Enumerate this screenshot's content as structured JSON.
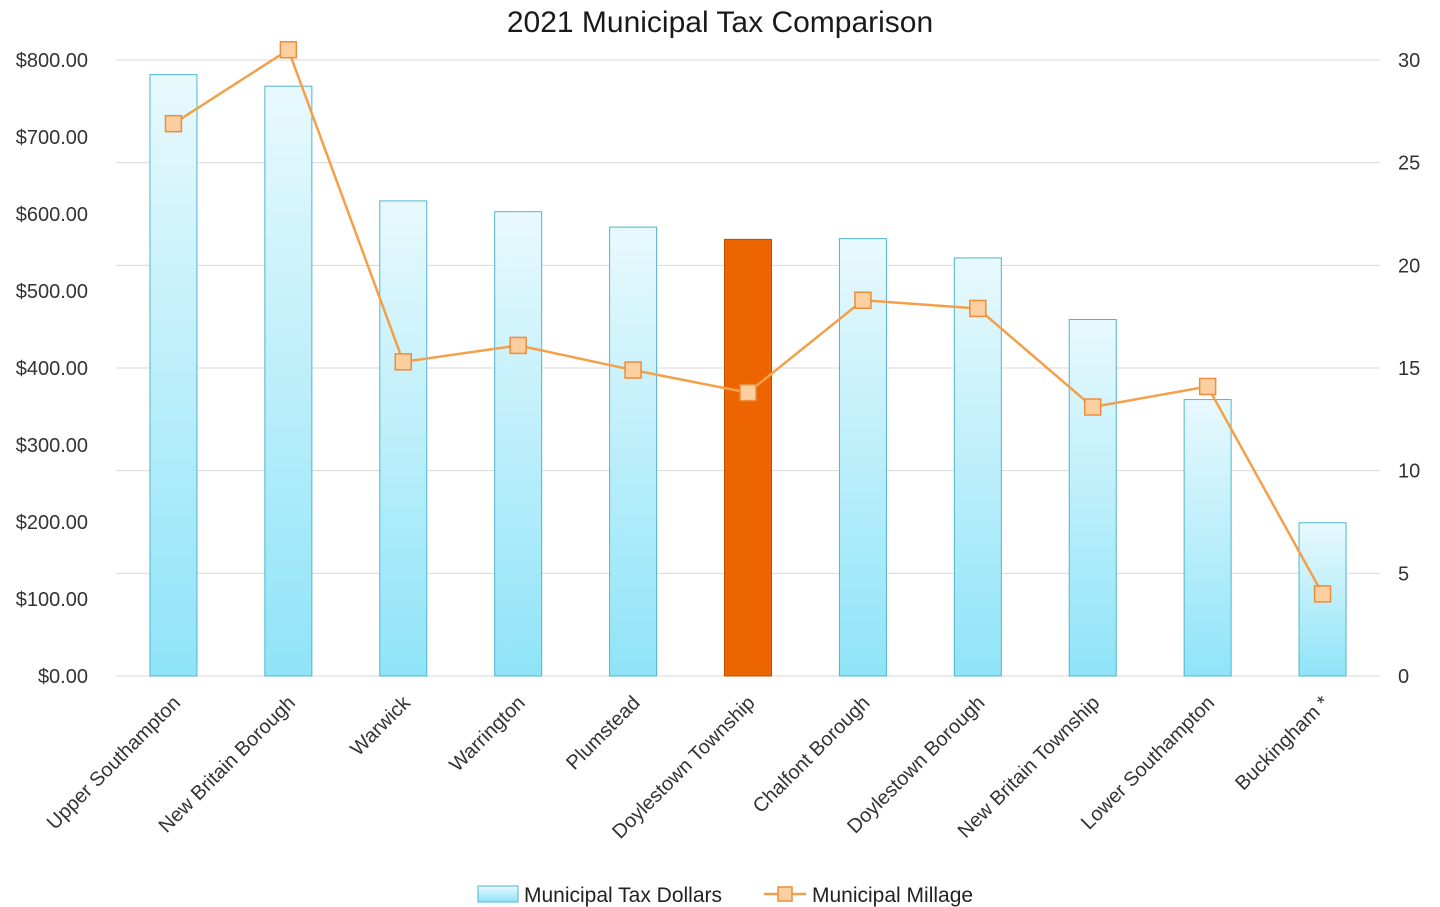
{
  "chart_data": {
    "type": "bar",
    "title": "2021 Municipal Tax Comparison",
    "categories": [
      "Upper Southampton",
      "New Britain Borough",
      "Warwick",
      "Warrington",
      "Plumstead",
      "Doylestown Township",
      "Chalfont Borough",
      "Doylestown Borough",
      "New Britain Township",
      "Lower Southampton",
      "Buckingham *"
    ],
    "series": [
      {
        "name": "Municipal Tax Dollars",
        "type": "bar",
        "axis": "left",
        "values": [
          781,
          766,
          617,
          603,
          583,
          567,
          568,
          543,
          463,
          359,
          199
        ]
      },
      {
        "name": "Municipal Millage",
        "type": "line",
        "axis": "right",
        "values": [
          26.9,
          30.5,
          15.3,
          16.1,
          14.9,
          13.8,
          18.3,
          17.9,
          13.1,
          14.1,
          4.0
        ]
      }
    ],
    "highlight": {
      "category": "Doylestown Township",
      "color": "#ec6500"
    },
    "y_left": {
      "min": 0,
      "max": 800,
      "ticks": [
        "$0.00",
        "$100.00",
        "$200.00",
        "$300.00",
        "$400.00",
        "$500.00",
        "$600.00",
        "$700.00",
        "$800.00"
      ]
    },
    "y_right": {
      "min": 0,
      "max": 30,
      "ticks": [
        "0",
        "5",
        "10",
        "15",
        "20",
        "25",
        "30"
      ]
    },
    "grid": true,
    "legend": "bottom",
    "colors": {
      "bar_fill_top": "#e8f9fd",
      "bar_fill_bottom": "#8fe4f8",
      "bar_stroke": "#4fb5d0",
      "line": "#f4a04a",
      "marker_fill": "#fbcf9f",
      "marker_stroke": "#ee8d3b"
    }
  }
}
